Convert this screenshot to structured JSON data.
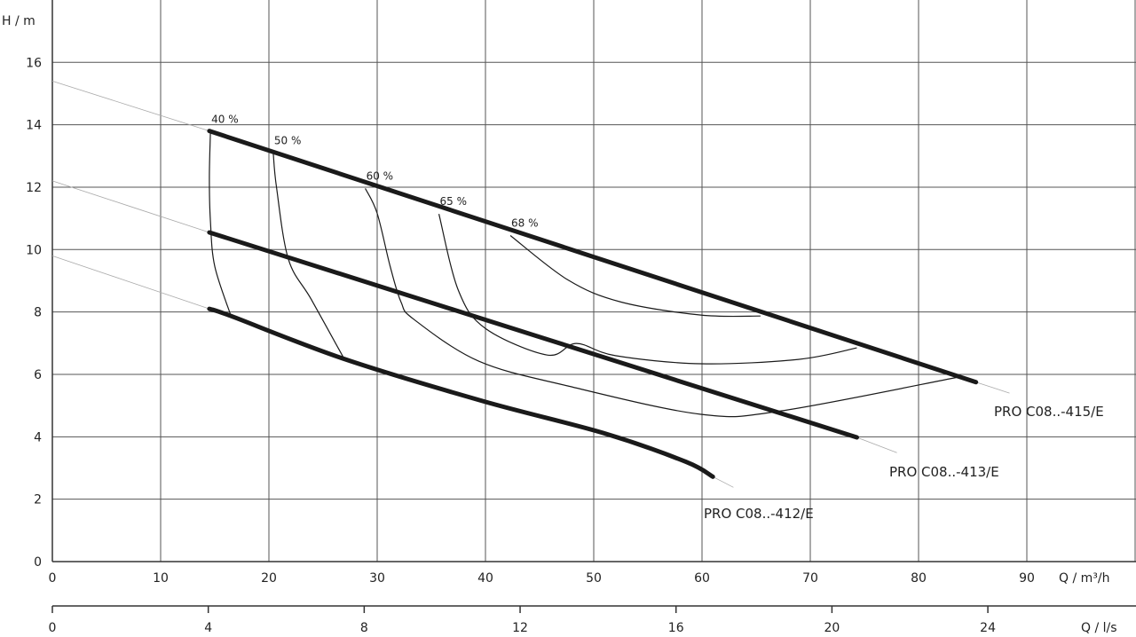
{
  "chart_data": {
    "type": "line",
    "title": "",
    "ylabel": "H / m",
    "xlabel": "Q / m³/h",
    "x2label": "Q / l/s",
    "xlim": [
      0,
      100
    ],
    "ylim": [
      0,
      18
    ],
    "x2lim_ls": [
      0,
      27.78
    ],
    "grid": true,
    "xticks": [
      0,
      10,
      20,
      30,
      40,
      50,
      60,
      70,
      80,
      90
    ],
    "yticks": [
      0,
      2,
      4,
      6,
      8,
      10,
      12,
      14,
      16
    ],
    "x2ticks": [
      0,
      4,
      8,
      12,
      16,
      20,
      24
    ],
    "colors": {
      "curve": "#1a1a1a",
      "grid": "#555555",
      "extension": "#aaaaaa"
    },
    "series": [
      {
        "name": "PRO C08..-415/E",
        "extension_start": [
          [
            0,
            15.4
          ],
          [
            14.5,
            13.8
          ]
        ],
        "points": [
          [
            14.5,
            13.8
          ],
          [
            85.3,
            5.75
          ]
        ],
        "extension_end": [
          [
            85.3,
            5.75
          ],
          [
            88.4,
            5.4
          ]
        ]
      },
      {
        "name": "PRO C08..-413/E",
        "extension_start": [
          [
            0,
            12.2
          ],
          [
            14.5,
            10.55
          ]
        ],
        "points": [
          [
            14.5,
            10.55
          ],
          [
            74.3,
            3.98
          ]
        ],
        "extension_end": [
          [
            74.3,
            3.98
          ],
          [
            78,
            3.49
          ]
        ]
      },
      {
        "name": "PRO C08..-412/E",
        "extension_start": [
          [
            0,
            9.8
          ],
          [
            14.5,
            8.1
          ]
        ],
        "points": [
          [
            14.5,
            8.1
          ],
          [
            16.5,
            7.87
          ],
          [
            26.9,
            6.5
          ],
          [
            39.8,
            5.14
          ],
          [
            50.9,
            4.12
          ],
          [
            58.5,
            3.2
          ],
          [
            61,
            2.72
          ]
        ],
        "extension_end": [
          [
            61,
            2.72
          ],
          [
            62.9,
            2.38
          ]
        ]
      }
    ],
    "efficiency_curves": [
      {
        "label": "40 %",
        "points": [
          [
            14.6,
            13.78
          ],
          [
            14.5,
            12.3
          ],
          [
            14.6,
            10.9
          ],
          [
            15.0,
            9.46
          ],
          [
            16.5,
            7.87
          ]
        ]
      },
      {
        "label": "50 %",
        "points": [
          [
            20.4,
            13.1
          ],
          [
            20.7,
            12.0
          ],
          [
            21.8,
            9.69
          ],
          [
            23.9,
            8.41
          ],
          [
            26.9,
            6.53
          ]
        ]
      },
      {
        "label": "60 %",
        "points": [
          [
            28.9,
            11.96
          ],
          [
            30,
            11.16
          ],
          [
            31.2,
            9.46
          ],
          [
            32.2,
            8.32
          ],
          [
            33.4,
            7.76
          ],
          [
            39.4,
            6.42
          ],
          [
            47.6,
            5.63
          ],
          [
            59.9,
            4.72
          ],
          [
            67.3,
            4.83
          ],
          [
            83.5,
            5.9
          ]
        ]
      },
      {
        "label": "65 %",
        "points": [
          [
            35.7,
            11.14
          ],
          [
            37.5,
            8.69
          ],
          [
            40,
            7.47
          ],
          [
            45.7,
            6.62
          ],
          [
            48.4,
            6.99
          ],
          [
            52,
            6.6
          ],
          [
            59.9,
            6.34
          ],
          [
            68.9,
            6.48
          ],
          [
            74.3,
            6.85
          ]
        ]
      },
      {
        "label": "68 %",
        "points": [
          [
            42.3,
            10.45
          ],
          [
            47.6,
            9.03
          ],
          [
            52.5,
            8.32
          ],
          [
            59.9,
            7.9
          ],
          [
            65.4,
            7.87
          ]
        ]
      }
    ]
  }
}
